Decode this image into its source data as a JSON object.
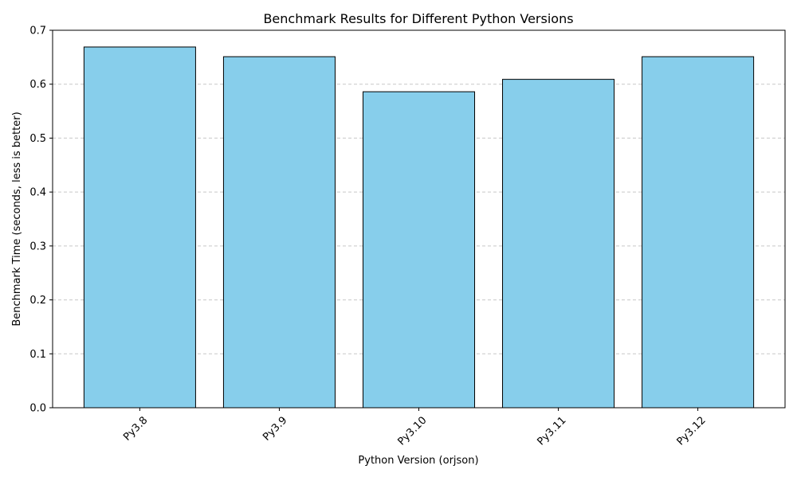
{
  "chart_data": {
    "type": "bar",
    "title": "Benchmark Results for Different Python Versions",
    "xlabel": "Python Version (orjson)",
    "ylabel": "Benchmark Time (seconds, less is better)",
    "categories": [
      "Py3.8",
      "Py3.9",
      "Py3.10",
      "Py3.11",
      "Py3.12"
    ],
    "values": [
      0.669,
      0.651,
      0.586,
      0.609,
      0.651
    ],
    "ylim": [
      0,
      0.7
    ],
    "yticks": [
      0.0,
      0.1,
      0.2,
      0.3,
      0.4,
      0.5,
      0.6,
      0.7
    ],
    "ytick_labels": [
      "0.0",
      "0.1",
      "0.2",
      "0.3",
      "0.4",
      "0.5",
      "0.6",
      "0.7"
    ],
    "grid": "y-dashed",
    "xtick_rotation": 45,
    "colors": {
      "bar_fill": "#87ceeb",
      "bar_edge": "#000000",
      "grid": "#c8c8c8"
    }
  }
}
